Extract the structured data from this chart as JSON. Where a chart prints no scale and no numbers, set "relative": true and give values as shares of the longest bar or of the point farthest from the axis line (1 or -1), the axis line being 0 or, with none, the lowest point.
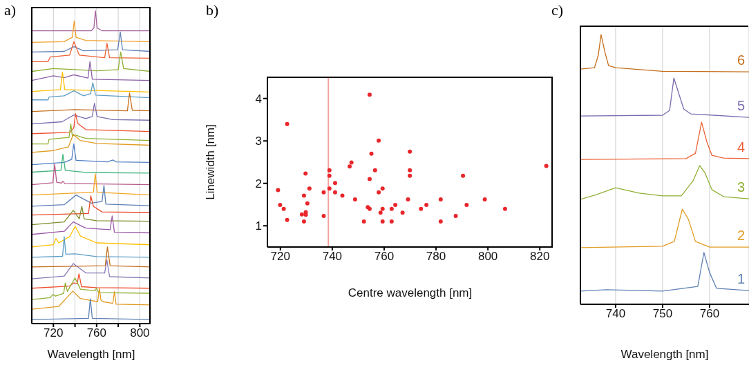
{
  "chart_data": [
    {
      "type": "line",
      "title": "a)",
      "xlabel": "Wavelength [nm]",
      "xlim": [
        700,
        810
      ],
      "xticks": [
        720,
        {
          "value": 740,
          "label": null
        },
        760,
        {
          "value": 780,
          "label": null
        },
        800
      ],
      "grid": "x",
      "relative": true,
      "tick_labels": "x",
      "series": [
        {
          "color": "#a5609d",
          "x": [
            700,
            755,
            757.5,
            758.9,
            760.5,
            765,
            810
          ],
          "values": [
            0.936,
            0.936,
            0.945,
            1.0,
            0.945,
            0.936,
            0.936
          ]
        },
        {
          "color": "#f3a02b",
          "x": [
            700,
            730,
            737.5,
            739.3,
            741,
            750,
            810
          ],
          "values": [
            0.899,
            0.901,
            0.915,
            0.967,
            0.915,
            0.905,
            0.901
          ]
        },
        {
          "color": "#5e81b5",
          "x": [
            700,
            730,
            739,
            748,
            779.5,
            781.9,
            784,
            810
          ],
          "values": [
            0.868,
            0.87,
            0.885,
            0.872,
            0.875,
            0.932,
            0.875,
            0.87
          ]
        },
        {
          "color": "#eb6235",
          "x": [
            700,
            715,
            717,
            735,
            739,
            744,
            767.5,
            769.6,
            772,
            810
          ],
          "values": [
            0.837,
            0.837,
            0.852,
            0.858,
            0.901,
            0.858,
            0.85,
            0.896,
            0.85,
            0.848
          ]
        },
        {
          "color": "#8fb032",
          "x": [
            700,
            720,
            740,
            760,
            780,
            782.3,
            785,
            810
          ],
          "values": [
            0.806,
            0.815,
            0.812,
            0.808,
            0.812,
            0.868,
            0.815,
            0.806
          ]
        },
        {
          "color": "#8b5fa8",
          "x": [
            700,
            720,
            730,
            739,
            752,
            753.9,
            756,
            810
          ],
          "values": [
            0.777,
            0.792,
            0.786,
            0.795,
            0.785,
            0.837,
            0.781,
            0.777
          ]
        },
        {
          "color": "#ffbf00",
          "x": [
            700,
            726.5,
            728.4,
            730.5,
            810
          ],
          "values": [
            0.742,
            0.748,
            0.804,
            0.748,
            0.74
          ]
        },
        {
          "color": "#5d9ec7",
          "x": [
            700,
            715,
            716,
            730,
            739,
            748,
            754.5,
            756.5,
            759,
            810
          ],
          "values": [
            0.715,
            0.715,
            0.724,
            0.728,
            0.744,
            0.728,
            0.735,
            0.77,
            0.73,
            0.722
          ]
        },
        {
          "color": "#c56e1a",
          "x": [
            700,
            740,
            788.5,
            790.5,
            793,
            810
          ],
          "values": [
            0.678,
            0.684,
            0.68,
            0.737,
            0.682,
            0.68
          ]
        },
        {
          "color": "#7c6bb0",
          "x": [
            700,
            728,
            739,
            750,
            756,
            758,
            760.5,
            775,
            810
          ],
          "values": [
            0.638,
            0.645,
            0.667,
            0.655,
            0.662,
            0.704,
            0.662,
            0.652,
            0.65
          ]
        },
        {
          "color": "#f0512f",
          "x": [
            700,
            735,
            738.8,
            740.5,
            742.5,
            750,
            810
          ],
          "values": [
            0.607,
            0.611,
            0.625,
            0.671,
            0.64,
            0.62,
            0.614
          ]
        },
        {
          "color": "#8fb032",
          "x": [
            700,
            715,
            716,
            734.5,
            736.1,
            737.5,
            740,
            750,
            810
          ],
          "values": [
            0.574,
            0.574,
            0.589,
            0.595,
            0.638,
            0.6,
            0.603,
            0.592,
            0.585
          ]
        },
        {
          "color": "#e19c24",
          "x": [
            700,
            720,
            734,
            738.4,
            745,
            760,
            810
          ],
          "values": [
            0.547,
            0.553,
            0.565,
            0.605,
            0.585,
            0.576,
            0.57
          ]
        },
        {
          "color": "#4f7fc4",
          "x": [
            700,
            730,
            737,
            738.8,
            741,
            770,
            775,
            778,
            810
          ],
          "values": [
            0.508,
            0.515,
            0.525,
            0.574,
            0.522,
            0.517,
            0.523,
            0.517,
            0.515
          ]
        },
        {
          "color": "#3fb57a",
          "x": [
            700,
            727,
            728.8,
            731,
            750,
            810
          ],
          "values": [
            0.484,
            0.49,
            0.541,
            0.49,
            0.483,
            0.481
          ]
        },
        {
          "color": "#b85a8c",
          "x": [
            700,
            719.5,
            721.2,
            723,
            727.5,
            728.8,
            730.5,
            810
          ],
          "values": [
            0.444,
            0.45,
            0.51,
            0.452,
            0.449,
            0.455,
            0.448,
            0.444
          ]
        },
        {
          "color": "#f5a623",
          "x": [
            700,
            757,
            758.8,
            760.5,
            810
          ],
          "values": [
            0.411,
            0.42,
            0.479,
            0.42,
            0.411
          ]
        },
        {
          "color": "#5e81b5",
          "x": [
            700,
            730,
            741,
            755,
            765,
            766.8,
            768.5,
            810
          ],
          "values": [
            0.375,
            0.38,
            0.411,
            0.385,
            0.39,
            0.442,
            0.382,
            0.377
          ]
        },
        {
          "color": "#eb4a2a",
          "x": [
            700,
            752.5,
            754.6,
            757,
            765,
            810
          ],
          "values": [
            0.347,
            0.352,
            0.408,
            0.375,
            0.357,
            0.355
          ]
        },
        {
          "color": "#7f8b2a",
          "x": [
            700,
            730,
            738.4,
            744,
            746.3,
            748.5,
            760,
            810
          ],
          "values": [
            0.316,
            0.325,
            0.362,
            0.335,
            0.375,
            0.335,
            0.329,
            0.327
          ]
        },
        {
          "color": "#9b59a8",
          "x": [
            700,
            730,
            738.4,
            750,
            772.5,
            774.4,
            776.5,
            810
          ],
          "values": [
            0.285,
            0.295,
            0.325,
            0.305,
            0.3,
            0.344,
            0.292,
            0.29
          ]
        },
        {
          "color": "#ffbf00",
          "x": [
            700,
            720,
            722.3,
            725,
            735,
            740.2,
            745,
            760,
            810
          ],
          "values": [
            0.245,
            0.252,
            0.272,
            0.258,
            0.278,
            0.311,
            0.28,
            0.258,
            0.252
          ]
        },
        {
          "color": "#5d9ec7",
          "x": [
            700,
            728.5,
            730,
            731.5,
            740,
            760,
            810
          ],
          "values": [
            0.212,
            0.215,
            0.278,
            0.222,
            0.223,
            0.214,
            0.212
          ]
        },
        {
          "color": "#c56e1a",
          "x": [
            700,
            768,
            770,
            772.5,
            810
          ],
          "values": [
            0.181,
            0.185,
            0.245,
            0.185,
            0.181
          ]
        },
        {
          "color": "#8778b3",
          "x": [
            700,
            730,
            738.4,
            750,
            767.5,
            769.5,
            772,
            810
          ],
          "values": [
            0.143,
            0.152,
            0.192,
            0.162,
            0.162,
            0.203,
            0.15,
            0.146
          ]
        },
        {
          "color": "#f0512f",
          "x": [
            700,
            735,
            739,
            742,
            743.7,
            746,
            760,
            810
          ],
          "values": [
            0.113,
            0.12,
            0.13,
            0.128,
            0.159,
            0.118,
            0.115,
            0.113
          ]
        },
        {
          "color": "#8fb032",
          "x": [
            700,
            717,
            719.5,
            722,
            729.5,
            731,
            733,
            740,
            745,
            758.5,
            759.8,
            762,
            810
          ],
          "values": [
            0.077,
            0.083,
            0.093,
            0.088,
            0.097,
            0.13,
            0.103,
            0.146,
            0.11,
            0.105,
            0.113,
            0.099,
            0.097
          ]
        },
        {
          "color": "#e19c24",
          "x": [
            700,
            725,
            738,
            745,
            761,
            762.6,
            764,
            766,
            775,
            776.5,
            778,
            810
          ],
          "values": [
            0.046,
            0.055,
            0.104,
            0.08,
            0.07,
            0.113,
            0.075,
            0.07,
            0.065,
            0.102,
            0.062,
            0.06
          ]
        },
        {
          "color": "#5e81b5",
          "x": [
            700,
            752.5,
            754.2,
            756,
            810
          ],
          "values": [
            0.013,
            0.017,
            0.079,
            0.017,
            0.013
          ]
        }
      ]
    },
    {
      "type": "scatter",
      "title": "b)",
      "xlabel": "Centre wavelength [nm]",
      "ylabel": "Linewidth [nm]",
      "xlim": [
        715,
        825
      ],
      "xticks": [
        720,
        740,
        760,
        780,
        800,
        820
      ],
      "ylim": [
        0.5,
        4.5
      ],
      "yticks": [
        1,
        2,
        3,
        4
      ],
      "marker": "circle",
      "color": "#e8262b",
      "x": [
        719.1,
        719.9,
        721.3,
        722.6,
        722.6,
        728.3,
        729.1,
        729.1,
        729.7,
        729.8,
        729.8,
        730.4,
        731.2,
        736.7,
        736.7,
        738.9,
        738.9,
        738.9,
        741.1,
        741.1,
        743.9,
        746.7,
        747.4,
        748.8,
        752.2,
        753.7,
        754.4,
        754.4,
        754.4,
        755.1,
        756.5,
        757.9,
        757.9,
        758.6,
        759.4,
        759.4,
        759.4,
        762.9,
        762.9,
        764.3,
        767.1,
        769.2,
        769.9,
        769.9,
        769.9,
        774.2,
        776.3,
        781.8,
        781.8,
        787.6,
        790.4,
        791.8,
        798.8,
        806.6,
        822.5
      ],
      "values": [
        1.84,
        1.49,
        1.4,
        3.4,
        1.14,
        1.27,
        1.71,
        1.1,
        2.23,
        1.32,
        1.26,
        1.53,
        1.88,
        1.79,
        1.23,
        2.31,
        2.18,
        1.88,
        2.01,
        1.79,
        1.71,
        2.4,
        2.49,
        1.62,
        1.1,
        1.44,
        4.09,
        2.1,
        1.4,
        2.7,
        2.31,
        3.01,
        1.79,
        1.31,
        1.88,
        1.4,
        1.1,
        1.4,
        1.1,
        1.49,
        1.31,
        1.62,
        2.75,
        2.31,
        2.18,
        1.4,
        1.49,
        1.62,
        1.1,
        1.23,
        2.18,
        1.49,
        1.62,
        1.4,
        2.41
      ],
      "ref_lines": [
        {
          "axis": "x",
          "value": 738.5,
          "color": "#f4a0a0"
        }
      ]
    },
    {
      "type": "line",
      "title": "c)",
      "xlabel": "Wavelength [nm]",
      "xlim": [
        732.5,
        768.4
      ],
      "xticks": [
        740,
        750,
        760
      ],
      "grid": "x",
      "relative": true,
      "tick_labels": "x",
      "series": [
        {
          "name": "6",
          "color": "#c56e1a",
          "x": [
            732.5,
            735.5,
            736.3,
            736.9,
            737.7,
            738.5,
            740,
            750,
            768.4
          ],
          "values": [
            0.872,
            0.877,
            0.923,
            1.0,
            0.936,
            0.885,
            0.877,
            0.864,
            0.862
          ]
        },
        {
          "name": "5",
          "color": "#7c6bb0",
          "x": [
            732.5,
            750,
            751.5,
            752.4,
            753.2,
            754.5,
            756,
            768.4
          ],
          "values": [
            0.698,
            0.701,
            0.719,
            0.839,
            0.795,
            0.724,
            0.706,
            0.693
          ]
        },
        {
          "name": "4",
          "color": "#eb6235",
          "x": [
            732.5,
            755,
            757,
            758.3,
            759.4,
            760.5,
            763,
            768.4
          ],
          "values": [
            0.537,
            0.54,
            0.56,
            0.675,
            0.604,
            0.552,
            0.542,
            0.54
          ]
        },
        {
          "name": "3",
          "color": "#8fb032",
          "x": [
            732.5,
            736,
            740,
            745,
            750,
            754,
            756.5,
            757.9,
            759,
            760.5,
            763,
            768.4
          ],
          "values": [
            0.389,
            0.407,
            0.432,
            0.412,
            0.402,
            0.402,
            0.458,
            0.514,
            0.488,
            0.425,
            0.399,
            0.391
          ]
        },
        {
          "name": "2",
          "color": "#e19c24",
          "x": [
            732.5,
            750,
            752.5,
            754.2,
            755.5,
            757,
            760,
            768.4
          ],
          "values": [
            0.21,
            0.215,
            0.233,
            0.353,
            0.315,
            0.233,
            0.212,
            0.212
          ]
        },
        {
          "name": "1",
          "color": "#5e81b5",
          "x": [
            732.5,
            738,
            750,
            757.5,
            758.8,
            760,
            761.5,
            768.4
          ],
          "values": [
            0.049,
            0.054,
            0.049,
            0.066,
            0.192,
            0.118,
            0.059,
            0.051
          ]
        }
      ]
    }
  ]
}
